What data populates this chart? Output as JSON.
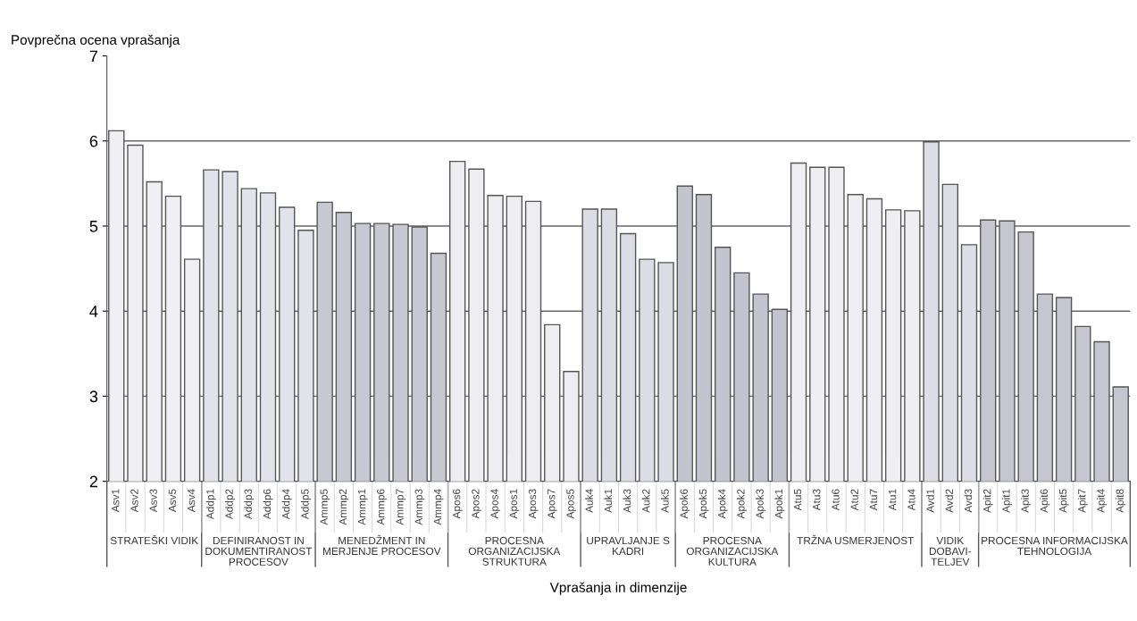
{
  "chart_data": {
    "type": "bar",
    "ylabel": "Povprečna ocena vprašanja",
    "xlabel": "Vprašanja in dimenzije",
    "categories": [
      "Asv1",
      "Asv2",
      "Asv3",
      "Asv5",
      "Asv4",
      "Addp1",
      "Addp2",
      "Addp3",
      "Addp6",
      "Addp4",
      "Addp5",
      "Ammp5",
      "Ammp2",
      "Ammp1",
      "Ammp6",
      "Ammp7",
      "Ammp3",
      "Ammp4",
      "Apos6",
      "Apos2",
      "Apos4",
      "Apos1",
      "Apos3",
      "Apos7",
      "Apos5",
      "Auk4",
      "Auk1",
      "Auk3",
      "Auk2",
      "Auk5",
      "Apok6",
      "Apok5",
      "Apok4",
      "Apok2",
      "Apok3",
      "Apok1",
      "Atu5",
      "Atu3",
      "Atu6",
      "Atu2",
      "Atu7",
      "Atu1",
      "Atu4",
      "Avd1",
      "Avd2",
      "Avd3",
      "Apit2",
      "Apit1",
      "Apit3",
      "Apit6",
      "Apit5",
      "Apit7",
      "Apit4",
      "Apit8"
    ],
    "values": [
      6.12,
      5.95,
      5.52,
      5.35,
      4.61,
      5.66,
      5.64,
      5.44,
      5.39,
      5.22,
      4.95,
      5.28,
      5.16,
      5.03,
      5.03,
      5.02,
      4.99,
      4.68,
      5.76,
      5.67,
      5.36,
      5.35,
      5.29,
      3.84,
      3.29,
      5.2,
      5.2,
      4.91,
      4.61,
      4.57,
      5.47,
      5.37,
      4.75,
      4.45,
      4.2,
      4.02,
      5.74,
      5.69,
      5.69,
      5.37,
      5.32,
      5.19,
      5.18,
      5.99,
      5.49,
      4.78,
      5.07,
      5.06,
      4.93,
      4.2,
      4.16,
      3.82,
      3.64,
      3.11
    ],
    "colors": [
      "#f0f0f4",
      "#f0f0f4",
      "#f0f0f4",
      "#f0f0f4",
      "#f0f0f4",
      "#e2e2ea",
      "#e2e2ea",
      "#e2e2ea",
      "#e2e2ea",
      "#e2e2ea",
      "#e2e2ea",
      "#c8c8d2",
      "#c8c8d2",
      "#c8c8d2",
      "#c8c8d2",
      "#c8c8d2",
      "#c8c8d2",
      "#c8c8d2",
      "#ededf2",
      "#ededf2",
      "#ededf2",
      "#ededf2",
      "#ededf2",
      "#ededf2",
      "#ededf2",
      "#dcdce4",
      "#dcdce4",
      "#dcdce4",
      "#dcdce4",
      "#dcdce4",
      "#c4c4ce",
      "#c4c4ce",
      "#c4c4ce",
      "#c4c4ce",
      "#c4c4ce",
      "#c4c4ce",
      "#eeeef3",
      "#eeeef3",
      "#eeeef3",
      "#eeeef3",
      "#eeeef3",
      "#eeeef3",
      "#eeeef3",
      "#dedee6",
      "#dedee6",
      "#dedee6",
      "#c6c6d0",
      "#c6c6d0",
      "#c6c6d0",
      "#c6c6d0",
      "#c6c6d0",
      "#c6c6d0",
      "#c6c6d0",
      "#c6c6d0"
    ],
    "annotations": [
      "STRATEŠKI VIDIK",
      "DEFINIRANOST IN\nDOKUMENTIRANOST\nPROCESOV",
      "MENEDŽMENT IN\nMERJENJE PROCESOV",
      "PROCESNA\nORGANIZACIJSKA\nSTRUKTURA",
      "UPRAVLJANJE S\nKADRI",
      "PROCESNA\nORGANIZACIJSKA\nKULTURA",
      "TRŽNA USMERJENOST",
      "VIDIK\nDOBAVI-\nTELJEV",
      "PROCESNA INFORMACIJSKA\nTEHNOLOGIJA"
    ],
    "ylim": [
      2,
      7
    ],
    "yticks": [
      2,
      3,
      4,
      5,
      6,
      7
    ],
    "grid": "y"
  }
}
